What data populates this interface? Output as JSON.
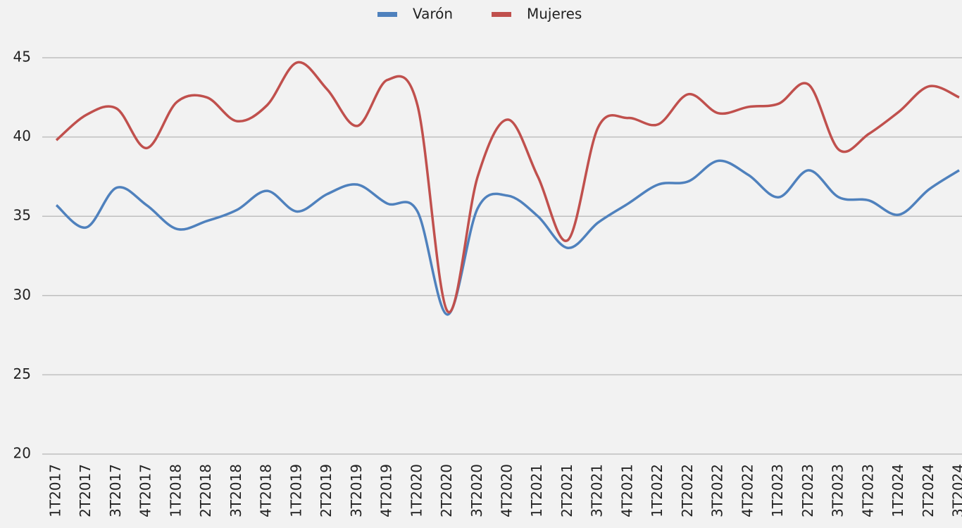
{
  "chart_data": {
    "type": "line",
    "categories": [
      "1T2017",
      "2T2017",
      "3T2017",
      "4T2017",
      "1T2018",
      "2T2018",
      "3T2018",
      "4T2018",
      "1T2019",
      "2T2019",
      "3T2019",
      "4T2019",
      "1T2020",
      "2T2020",
      "3T2020",
      "4T2020",
      "1T2021",
      "2T2021",
      "3T2021",
      "4T2021",
      "1T2022",
      "2T2022",
      "3T2022",
      "4T2022",
      "1T2023",
      "2T2023",
      "3T2023",
      "4T2023",
      "1T2024",
      "2T2024",
      "3T2024"
    ],
    "series": [
      {
        "name": "Varón",
        "color": "#4f81bd",
        "values": [
          35.7,
          34.3,
          36.8,
          35.7,
          34.2,
          34.7,
          35.4,
          36.6,
          35.3,
          36.4,
          37.0,
          35.8,
          35.3,
          28.8,
          35.5,
          36.3,
          35.0,
          33.0,
          34.6,
          35.8,
          37.0,
          37.2,
          38.5,
          37.6,
          36.2,
          37.9,
          36.2,
          36.0,
          35.1,
          36.7,
          37.9
        ]
      },
      {
        "name": "Mujeres",
        "color": "#c0504d",
        "values": [
          39.8,
          41.4,
          41.8,
          39.3,
          42.2,
          42.5,
          41.0,
          42.0,
          44.7,
          43.0,
          40.7,
          43.6,
          42.0,
          29.0,
          37.5,
          41.1,
          37.5,
          33.5,
          40.6,
          41.2,
          40.8,
          42.7,
          41.5,
          41.9,
          42.1,
          43.3,
          39.2,
          40.2,
          41.6,
          43.2,
          42.5
        ]
      }
    ],
    "ylim": [
      20,
      45
    ],
    "yticks": [
      20,
      25,
      30,
      35,
      40,
      45
    ],
    "grid": true,
    "legend": "top",
    "smooth": true
  }
}
